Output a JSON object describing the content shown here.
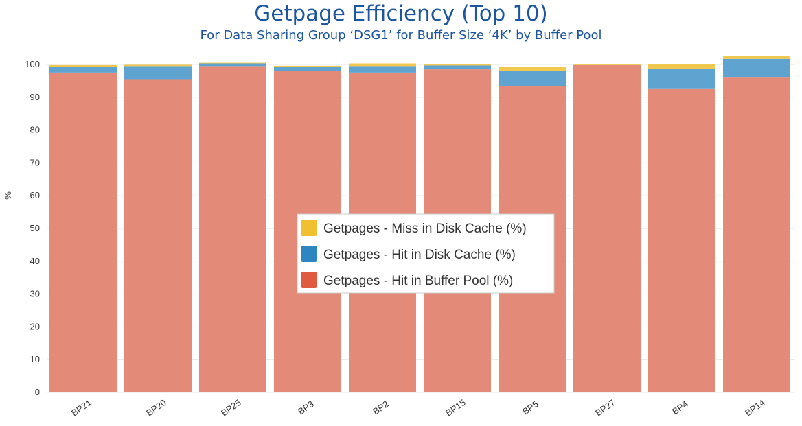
{
  "chart_data": {
    "type": "bar",
    "stacked": true,
    "title": "Getpage Efficiency (Top 10)",
    "subtitle": "For Data Sharing Group ‘DSG1’ for Buffer Size ‘4K’ by Buffer Pool",
    "xlabel": "",
    "ylabel": "%",
    "ylim": [
      0,
      100
    ],
    "yticks": [
      0,
      10,
      20,
      30,
      40,
      50,
      60,
      70,
      80,
      90,
      100
    ],
    "grid": true,
    "legend_position": "center",
    "categories": [
      "BP21",
      "BP20",
      "BP25",
      "BP3",
      "BP2",
      "BP15",
      "BP5",
      "BP27",
      "BP4",
      "BP14"
    ],
    "series": [
      {
        "name": "Getpages - Hit in Buffer Pool (%)",
        "color": "#e38a78",
        "values": [
          97.5,
          95.5,
          99.5,
          98,
          97.5,
          98.5,
          93.5,
          99.8,
          92.5,
          96.2
        ]
      },
      {
        "name": "Getpages - Hit in Disk Cache (%)",
        "color": "#5fa3d0",
        "values": [
          1.8,
          4,
          0.8,
          1.3,
          2,
          1.2,
          4.5,
          0,
          6.2,
          5.5
        ]
      },
      {
        "name": "Getpages - Miss in Disk Cache (%)",
        "color": "#f0c850",
        "values": [
          0.5,
          0.4,
          0.2,
          0.3,
          0.8,
          0.4,
          1.2,
          0.2,
          1.5,
          1
        ]
      }
    ],
    "legend_order": [
      2,
      1,
      0
    ],
    "legend_swatch_colors": [
      "#f0c030",
      "#2e86c1",
      "#e05a40"
    ]
  }
}
